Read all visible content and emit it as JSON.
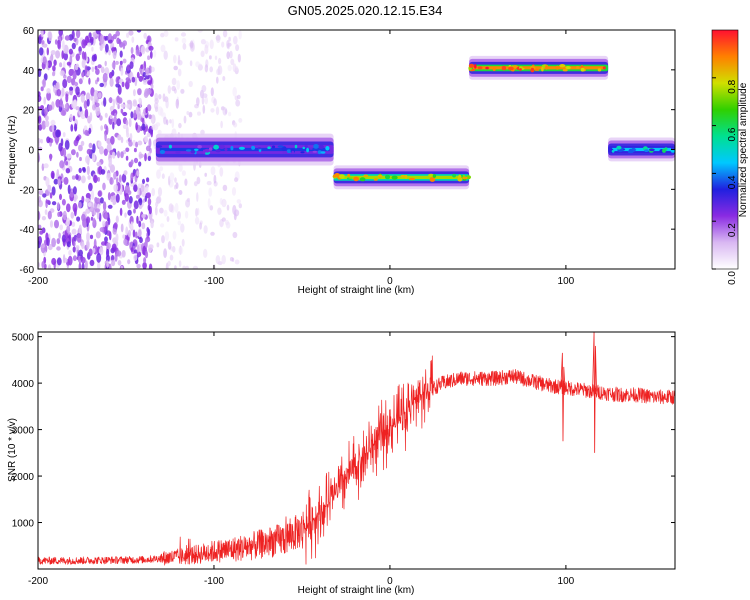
{
  "title": "GN05.2025.020.12.15.E34",
  "chart_data": [
    {
      "type": "heatmap",
      "xlabel": "Height of straight line (km)",
      "ylabel": "Frequency (Hz)",
      "xlim": [
        -200,
        162
      ],
      "ylim": [
        -60,
        60
      ],
      "xticks": [
        -200,
        -100,
        0,
        100
      ],
      "yticks": [
        -60,
        -40,
        -20,
        0,
        20,
        40,
        60
      ],
      "grid": false,
      "colorbar": {
        "label": "Normalized spectral amplitude",
        "range": [
          0,
          1
        ],
        "ticks": [
          0.0,
          0.2,
          0.4,
          0.6,
          0.8
        ],
        "tick_labels": [
          "0.0",
          "0.2",
          "0.4",
          "0.6",
          "0.8"
        ],
        "colormap": [
          "#ffffff",
          "#d9b8f2",
          "#8a2be2",
          "#2020e0",
          "#00c8ff",
          "#00e090",
          "#30d000",
          "#d0e000",
          "#ff8000",
          "#ff1030"
        ]
      },
      "regions": [
        {
          "kind": "noise",
          "x_range": [
            -200,
            -135
          ],
          "y_range": [
            -60,
            60
          ],
          "level": 0.15
        },
        {
          "kind": "noise",
          "x_range": [
            -135,
            -85
          ],
          "y_range": [
            -60,
            60
          ],
          "level": 0.04
        },
        {
          "kind": "band",
          "x_range": [
            -133,
            -32
          ],
          "center_hz": 0,
          "halfwidth_hz": 4,
          "level": 0.35
        },
        {
          "kind": "band",
          "x_range": [
            -32,
            45
          ],
          "center_hz": -14,
          "halfwidth_hz": 3,
          "level": 0.75
        },
        {
          "kind": "band",
          "x_range": [
            45,
            124
          ],
          "center_hz": 41,
          "halfwidth_hz": 3,
          "level": 0.88
        },
        {
          "kind": "band",
          "x_range": [
            124,
            162
          ],
          "center_hz": 0,
          "halfwidth_hz": 3,
          "level": 0.45
        }
      ]
    },
    {
      "type": "line",
      "xlabel": "Height of straight line (km)",
      "ylabel": "SNR (10 * v/v)",
      "xlim": [
        -200,
        162
      ],
      "ylim": [
        0,
        5100
      ],
      "xticks": [
        -200,
        -100,
        0,
        100
      ],
      "yticks": [
        1000,
        2000,
        3000,
        4000,
        5000
      ],
      "grid": false,
      "series": [
        {
          "color": "#ee2222",
          "x": [
            -200,
            -180,
            -160,
            -140,
            -130,
            -120,
            -110,
            -100,
            -90,
            -80,
            -70,
            -60,
            -50,
            -45,
            -40,
            -35,
            -30,
            -25,
            -20,
            -15,
            -10,
            -5,
            0,
            5,
            10,
            15,
            20,
            25,
            30,
            40,
            50,
            60,
            70,
            80,
            90,
            100,
            110,
            120,
            130,
            140,
            150,
            162
          ],
          "y": [
            180,
            180,
            190,
            200,
            230,
            260,
            310,
            380,
            420,
            480,
            560,
            650,
            850,
            1000,
            1200,
            1400,
            1700,
            1950,
            2200,
            2400,
            2650,
            2850,
            3050,
            3250,
            3450,
            3650,
            3800,
            3900,
            4000,
            4100,
            4100,
            4100,
            4150,
            4050,
            3950,
            3900,
            3850,
            3800,
            3750,
            3750,
            3700,
            3700
          ]
        }
      ],
      "annotations": [
        {
          "x": 98,
          "y_min": 2750,
          "y_max": 4650,
          "note": "spike"
        },
        {
          "x": 116,
          "y_min": 2500,
          "y_max": 5100,
          "note": "spike"
        }
      ]
    }
  ]
}
